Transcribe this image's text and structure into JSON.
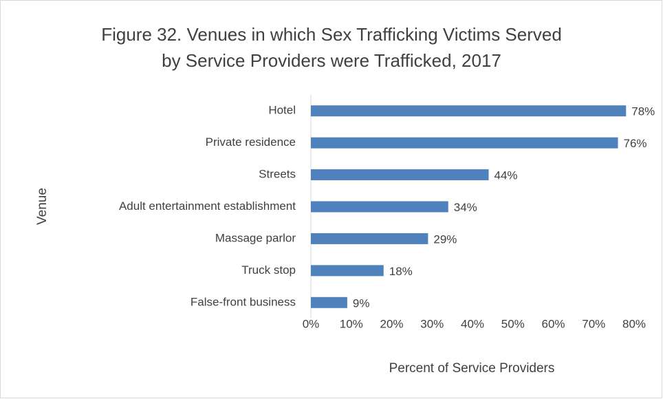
{
  "chart_data": {
    "type": "hbar",
    "title": [
      "Figure 32. Venues in which Sex Trafficking Victims Served",
      "by Service Providers were Trafficked, 2017"
    ],
    "xlabel": "Percent of Service Providers",
    "ylabel": "Venue",
    "categories": [
      "Hotel",
      "Private residence",
      "Streets",
      "Adult entertainment establishment",
      "Massage parlor",
      "Truck stop",
      "False-front business"
    ],
    "values": [
      78,
      76,
      44,
      34,
      29,
      18,
      9
    ],
    "value_labels": [
      "78%",
      "76%",
      "44%",
      "34%",
      "29%",
      "18%",
      "9%"
    ],
    "color": "#4f81bd",
    "xlim": [
      0,
      80
    ],
    "xticks": [
      {
        "value": 0,
        "label": "0%"
      },
      {
        "value": 10,
        "label": "10%"
      },
      {
        "value": 20,
        "label": "20%"
      },
      {
        "value": 30,
        "label": "30%"
      },
      {
        "value": 40,
        "label": "40%"
      },
      {
        "value": 50,
        "label": "50%"
      },
      {
        "value": 60,
        "label": "60%"
      },
      {
        "value": 70,
        "label": "70%"
      },
      {
        "value": 80,
        "label": "80%"
      }
    ],
    "grid": false
  }
}
